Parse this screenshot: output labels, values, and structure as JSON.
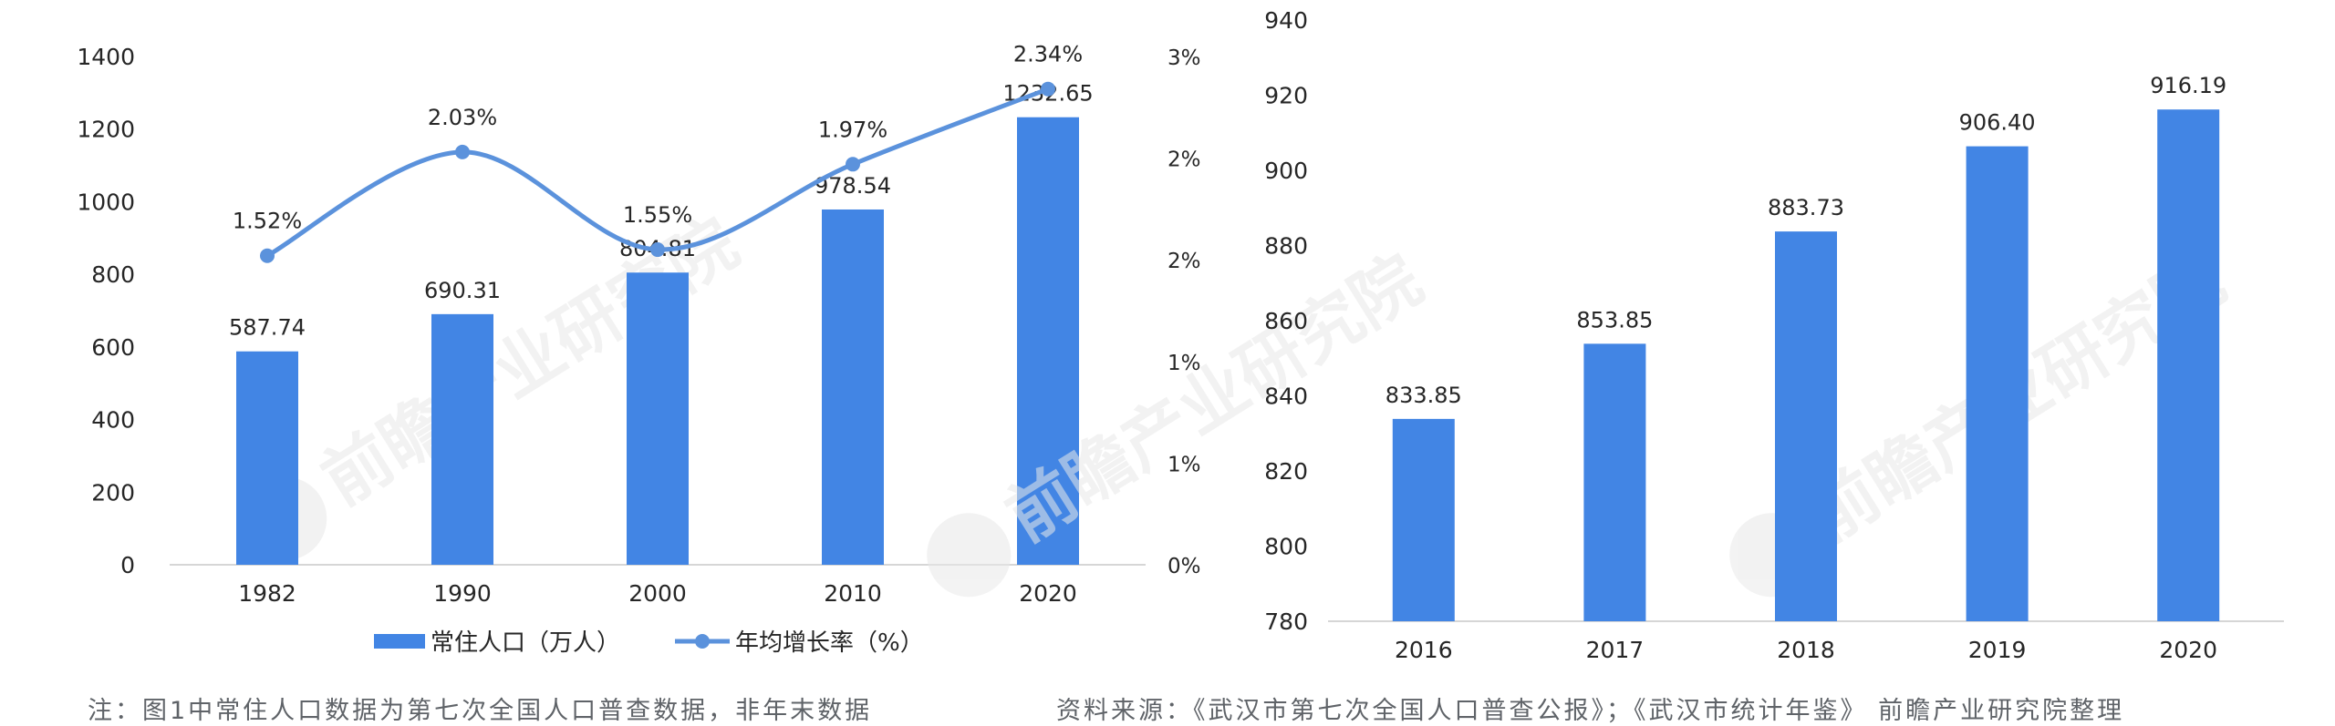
{
  "chart_data": [
    {
      "type": "bar+line",
      "categories": [
        "1982",
        "1990",
        "2000",
        "2010",
        "2020"
      ],
      "series": [
        {
          "name": "常住人口（万人）",
          "type": "bar",
          "axis": "left",
          "values": [
            587.74,
            690.31,
            804.81,
            978.54,
            1232.65
          ],
          "labels": [
            "587.74",
            "690.31",
            "804.81",
            "978.54",
            "1232.65"
          ]
        },
        {
          "name": "年均增长率（%）",
          "type": "line",
          "axis": "right",
          "values": [
            1.52,
            2.03,
            1.55,
            1.97,
            2.34
          ],
          "labels": [
            "1.52%",
            "2.03%",
            "1.55%",
            "1.97%",
            "2.34%"
          ]
        }
      ],
      "y_left": {
        "range": [
          0,
          1400
        ],
        "ticks": [
          "0",
          "200",
          "400",
          "600",
          "800",
          "1000",
          "1200",
          "1400"
        ]
      },
      "y_right": {
        "range": [
          0,
          2.5
        ],
        "ticks": [
          "0%",
          "1%",
          "1%",
          "2%",
          "2%",
          "3%"
        ]
      },
      "legend": [
        "常住人口（万人）",
        "年均增长率（%）"
      ],
      "legend_position": "bottom",
      "grid": false,
      "watermark": "前瞻产业研究院"
    },
    {
      "type": "bar",
      "categories": [
        "2016",
        "2017",
        "2018",
        "2019",
        "2020"
      ],
      "values": [
        833.85,
        853.85,
        883.73,
        906.4,
        916.19
      ],
      "labels": [
        "833.85",
        "853.85",
        "883.73",
        "906.40",
        "916.19"
      ],
      "ylim": [
        780,
        940
      ],
      "y_ticks": [
        "780",
        "800",
        "820",
        "840",
        "860",
        "880",
        "900",
        "920",
        "940"
      ],
      "grid": false,
      "watermark": "前瞻产业研究院"
    }
  ],
  "footer": {
    "left_note": "注：图1中常住人口数据为第七次全国人口普查数据，非年末数据",
    "right_note": "资料来源：《武汉市第七次全国人口普查公报》；《武汉市统计年鉴》 前瞻产业研究院整理"
  },
  "colors": {
    "bar": "#4285e4",
    "line": "#5b92dc",
    "axis": "#d6d6d6",
    "text": "#262626",
    "note": "#5f6368",
    "watermark": "#e9e9e9"
  }
}
